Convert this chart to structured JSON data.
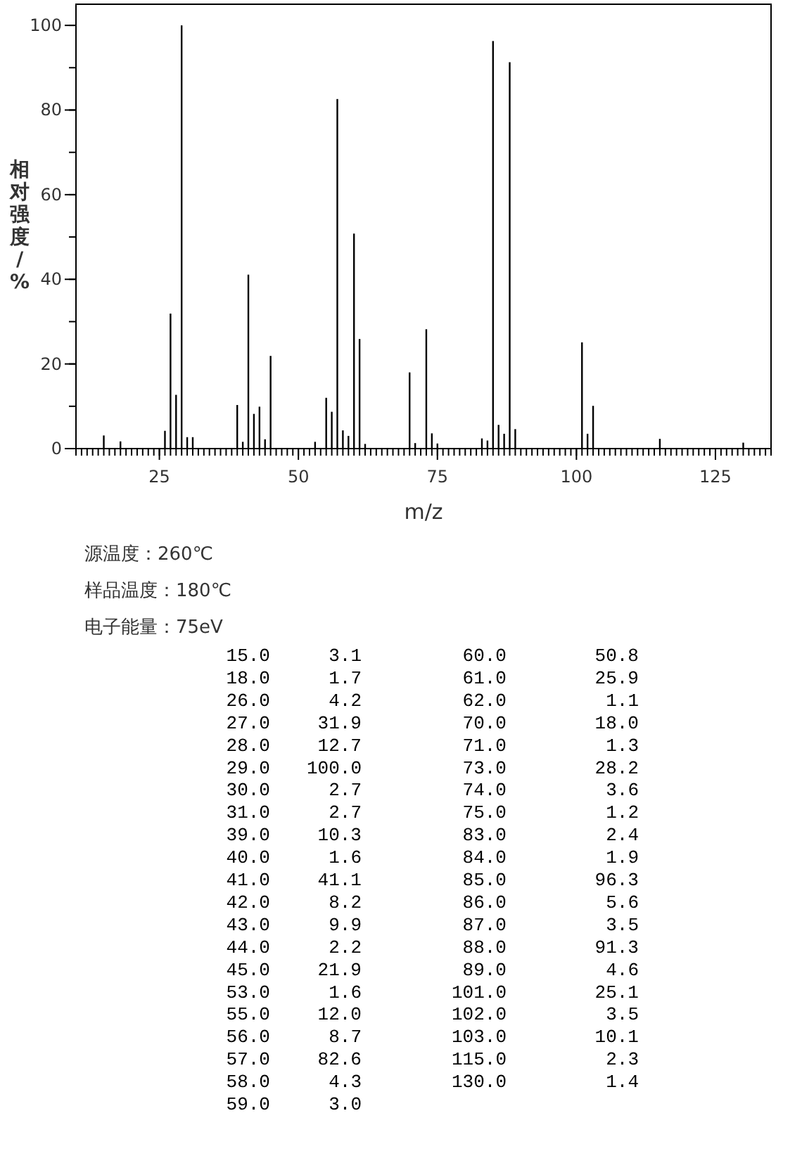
{
  "chart_data": [
    {
      "type": "bar",
      "xlabel": "m/z",
      "ylabel": "相对强度/%",
      "x": [
        15,
        18,
        26,
        27,
        28,
        29,
        30,
        31,
        39,
        40,
        41,
        42,
        43,
        44,
        45,
        53,
        55,
        56,
        57,
        58,
        59,
        60,
        61,
        62,
        70,
        71,
        73,
        74,
        75,
        83,
        84,
        85,
        86,
        87,
        88,
        89,
        101,
        102,
        103,
        115,
        130
      ],
      "values": [
        3.1,
        1.7,
        4.2,
        31.9,
        12.7,
        100.0,
        2.7,
        2.7,
        10.3,
        1.6,
        41.1,
        8.2,
        9.9,
        2.2,
        21.9,
        1.6,
        12.0,
        8.7,
        82.6,
        4.3,
        3.0,
        50.8,
        25.9,
        1.1,
        18.0,
        1.3,
        28.2,
        3.6,
        1.2,
        2.4,
        1.9,
        96.3,
        5.6,
        3.5,
        91.3,
        4.6,
        25.1,
        3.5,
        10.1,
        2.3,
        1.4
      ],
      "color": "#000000",
      "xlim": [
        10,
        135
      ],
      "xticks": [
        25,
        50,
        75,
        100,
        125
      ],
      "ylim": [
        0,
        105
      ],
      "yticks": [
        0,
        20,
        40,
        60,
        80,
        100
      ],
      "annotations": [
        "源温度：260℃",
        "样品温度：180℃",
        "电子能量：75eV"
      ]
    },
    {
      "type": "other",
      "annotations": [
        "15.0",
        "3.1",
        "18.0",
        "1.7",
        "26.0",
        "4.2",
        "27.0",
        "31.9",
        "28.0",
        "12.7",
        "29.0",
        "100.0",
        "30.0",
        "2.7",
        "31.0",
        "2.7",
        "39.0",
        "10.3",
        "40.0",
        "1.6",
        "41.0",
        "41.1",
        "42.0",
        "8.2",
        "43.0",
        "9.9",
        "44.0",
        "2.2",
        "45.0",
        "21.9",
        "53.0",
        "1.6",
        "55.0",
        "12.0",
        "56.0",
        "8.7",
        "57.0",
        "82.6",
        "58.0",
        "4.3",
        "59.0",
        "3.0",
        "60.0",
        "50.8",
        "61.0",
        "25.9",
        "62.0",
        "1.1",
        "70.0",
        "18.0",
        "71.0",
        "1.3",
        "73.0",
        "28.2",
        "74.0",
        "3.6",
        "75.0",
        "1.2",
        "83.0",
        "2.4",
        "84.0",
        "1.9",
        "85.0",
        "96.3",
        "86.0",
        "5.6",
        "87.0",
        "3.5",
        "88.0",
        "91.3",
        "89.0",
        "4.6",
        "101.0",
        "25.1",
        "102.0",
        "3.5",
        "103.0",
        "10.1",
        "115.0",
        "2.3",
        "130.0",
        "1.4"
      ]
    }
  ]
}
